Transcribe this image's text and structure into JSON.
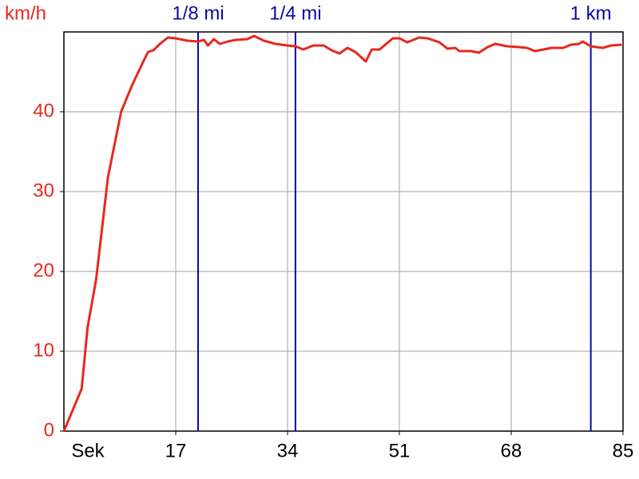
{
  "chart_data": {
    "type": "line",
    "ylabel": "km/h",
    "xlabel": "Sek",
    "x": [
      0,
      2.7,
      3.6,
      4.9,
      6.7,
      8.7,
      10.3,
      11.9,
      12.8,
      13.6,
      14.6,
      15.8,
      17.0,
      18.8,
      20.4,
      21.3,
      21.9,
      22.8,
      23.7,
      24.9,
      26.1,
      27.9,
      28.9,
      30.4,
      32.2,
      34.0,
      35.2,
      36.4,
      37.9,
      39.5,
      40.7,
      41.9,
      43.1,
      44.3,
      45.9,
      46.8,
      48.0,
      50.0,
      51.0,
      52.2,
      54.0,
      55.3,
      57.1,
      58.3,
      59.5,
      60.1,
      61.9,
      63.1,
      64.4,
      65.6,
      67.4,
      69.2,
      70.4,
      71.6,
      72.9,
      74.1,
      75.9,
      77.1,
      78.3,
      78.9,
      80.1,
      81.9,
      83.2,
      84.8
    ],
    "series": [
      {
        "name": "km/h",
        "color": "#e8281e",
        "values": [
          0,
          5.3,
          13,
          19,
          31.8,
          40,
          43.2,
          46,
          47.5,
          47.7,
          48.5,
          49.3,
          49.2,
          48.9,
          48.8,
          49,
          48.3,
          49.1,
          48.5,
          48.8,
          49,
          49.1,
          49.5,
          48.9,
          48.5,
          48.3,
          48.2,
          47.8,
          48.3,
          48.3,
          47.7,
          47.3,
          48,
          47.5,
          46.3,
          47.8,
          47.8,
          49.2,
          49.2,
          48.7,
          49.3,
          49.2,
          48.7,
          47.9,
          48,
          47.6,
          47.6,
          47.4,
          48.1,
          48.5,
          48.2,
          48.1,
          48,
          47.6,
          47.8,
          48,
          48,
          48.4,
          48.5,
          48.8,
          48.2,
          48,
          48.3,
          48.4
        ]
      }
    ],
    "markers": [
      {
        "label": "1/8 mi",
        "x": 20.4
      },
      {
        "label": "1/4 mi",
        "x": 35.2
      },
      {
        "label": "1 km",
        "x": 80.1
      }
    ],
    "marker_color": "#0a0aa0",
    "xlim": [
      0,
      85
    ],
    "xticks": [
      17,
      34,
      51,
      68,
      85
    ],
    "ylim": [
      0,
      50
    ],
    "yticks": [
      0,
      10,
      20,
      30,
      40
    ],
    "grid": true
  }
}
